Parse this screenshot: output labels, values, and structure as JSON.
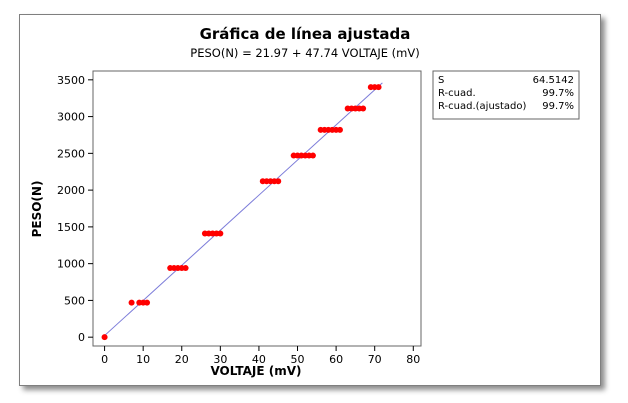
{
  "chart_data": {
    "type": "scatter",
    "title": "Gráfica de línea ajustada",
    "subtitle": "PESO(N) =  21.97 + 47.74 VOLTAJE (mV)",
    "xlabel": "VOLTAJE (mV)",
    "ylabel": "PESO(N)",
    "xlim": [
      -3,
      82
    ],
    "ylim": [
      -120,
      3620
    ],
    "xticks": [
      0,
      10,
      20,
      30,
      40,
      50,
      60,
      70,
      80
    ],
    "yticks": [
      0,
      500,
      1000,
      1500,
      2000,
      2500,
      3000,
      3500
    ],
    "grid": false,
    "fit_line": {
      "intercept": 21.97,
      "slope": 47.74,
      "x_range": [
        0,
        72
      ],
      "color": "#7b7bd9"
    },
    "points_color": "#ff0000",
    "points": [
      [
        0,
        0
      ],
      [
        7,
        470
      ],
      [
        9,
        470
      ],
      [
        10,
        470
      ],
      [
        11,
        470
      ],
      [
        17,
        940
      ],
      [
        18,
        940
      ],
      [
        19,
        940
      ],
      [
        20,
        940
      ],
      [
        21,
        940
      ],
      [
        26,
        1410
      ],
      [
        27,
        1410
      ],
      [
        28,
        1410
      ],
      [
        29,
        1410
      ],
      [
        30,
        1410
      ],
      [
        41,
        2120
      ],
      [
        42,
        2120
      ],
      [
        43,
        2120
      ],
      [
        44,
        2120
      ],
      [
        45,
        2120
      ],
      [
        49,
        2470
      ],
      [
        50,
        2470
      ],
      [
        51,
        2470
      ],
      [
        52,
        2470
      ],
      [
        53,
        2470
      ],
      [
        54,
        2470
      ],
      [
        56,
        2820
      ],
      [
        57,
        2820
      ],
      [
        58,
        2820
      ],
      [
        59,
        2820
      ],
      [
        60,
        2820
      ],
      [
        61,
        2820
      ],
      [
        63,
        3110
      ],
      [
        64,
        3110
      ],
      [
        65,
        3110
      ],
      [
        66,
        3110
      ],
      [
        67,
        3110
      ],
      [
        69,
        3400
      ],
      [
        70,
        3400
      ],
      [
        71,
        3400
      ]
    ],
    "stats": [
      {
        "label": "S",
        "value": "64.5142"
      },
      {
        "label": "R-cuad.",
        "value": "99.7%"
      },
      {
        "label": "R-cuad.(ajustado)",
        "value": "99.7%"
      }
    ]
  }
}
